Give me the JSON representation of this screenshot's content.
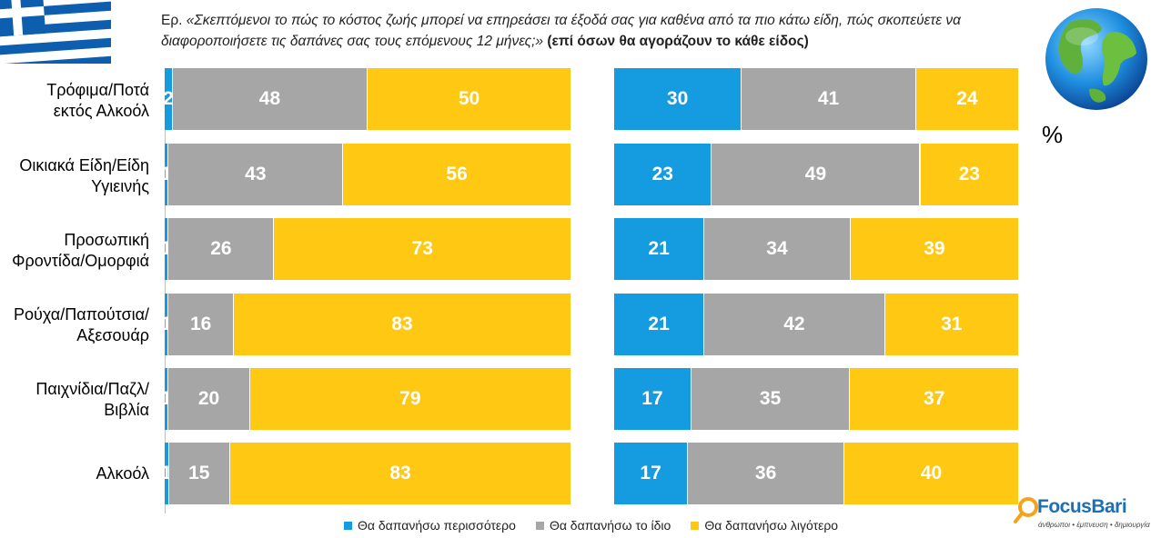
{
  "question": {
    "prefix": "Ερ.",
    "text": "«Σκεπτόμενοι το πώς το κόστος ζωής μπορεί να επηρεάσει τα έξοδά σας για καθένα από τα πιο κάτω είδη, πώς σκοπεύετε να διαφοροποιήσετε τις δαπάνες σας τους επόμενους 12 μήνες;»",
    "note": "(επί όσων θα αγοράζουν το κάθε είδος)"
  },
  "unit_label": "%",
  "logo": {
    "name": "FocusBari",
    "tagline": "άνθρωποι • έμπνευση • δημιουργία"
  },
  "icons": {
    "flag": "greek-flag-icon",
    "globe": "globe-icon"
  },
  "colors": {
    "more": "#159be0",
    "same": "#a6a6a6",
    "less": "#ffc813"
  },
  "chart_data": [
    {
      "type": "bar",
      "orientation": "horizontal",
      "stacked": true,
      "categories": [
        "Τρόφιμα/Ποτά εκτός Αλκοόλ",
        "Οικιακά Είδη/Είδη Υγιεινής",
        "Προσωπική Φροντίδα/Ομορφιά",
        "Ρούχα/Παπούτσια/ Αξεσουάρ",
        "Παιχνίδια/Παζλ/ Βιβλία",
        "Αλκοόλ"
      ],
      "series": [
        {
          "name": "Θα δαπανήσω περισσότερο",
          "values": [
            2,
            1,
            1,
            1,
            1,
            1
          ]
        },
        {
          "name": "Θα δαπανήσω το ίδιο",
          "values": [
            48,
            43,
            26,
            16,
            20,
            15
          ]
        },
        {
          "name": "Θα δαπανήσω λιγότερο",
          "values": [
            50,
            56,
            73,
            83,
            79,
            83
          ]
        }
      ]
    },
    {
      "type": "bar",
      "orientation": "horizontal",
      "stacked": true,
      "categories": [
        "Τρόφιμα/Ποτά εκτός Αλκοόλ",
        "Οικιακά Είδη/Είδη Υγιεινής",
        "Προσωπική Φροντίδα/Ομορφιά",
        "Ρούχα/Παπούτσια/ Αξεσουάρ",
        "Παιχνίδια/Παζλ/ Βιβλία",
        "Αλκοόλ"
      ],
      "series": [
        {
          "name": "Θα δαπανήσω περισσότερο",
          "values": [
            30,
            23,
            21,
            21,
            17,
            17
          ]
        },
        {
          "name": "Θα δαπανήσω το ίδιο",
          "values": [
            41,
            49,
            34,
            42,
            35,
            36
          ]
        },
        {
          "name": "Θα δαπανήσω λιγότερο",
          "values": [
            24,
            23,
            39,
            31,
            37,
            40
          ]
        }
      ]
    }
  ],
  "category_lines": [
    [
      "Τρόφιμα/Ποτά",
      "εκτός Αλκοόλ"
    ],
    [
      "Οικιακά Είδη/Είδη",
      "Υγιεινής"
    ],
    [
      "Προσωπική",
      "Φροντίδα/Ομορφιά"
    ],
    [
      "Ρούχα/Παπούτσια/",
      "Αξεσουάρ"
    ],
    [
      "Παιχνίδια/Παζλ/",
      "Βιβλία"
    ],
    [
      "Αλκοόλ"
    ]
  ]
}
